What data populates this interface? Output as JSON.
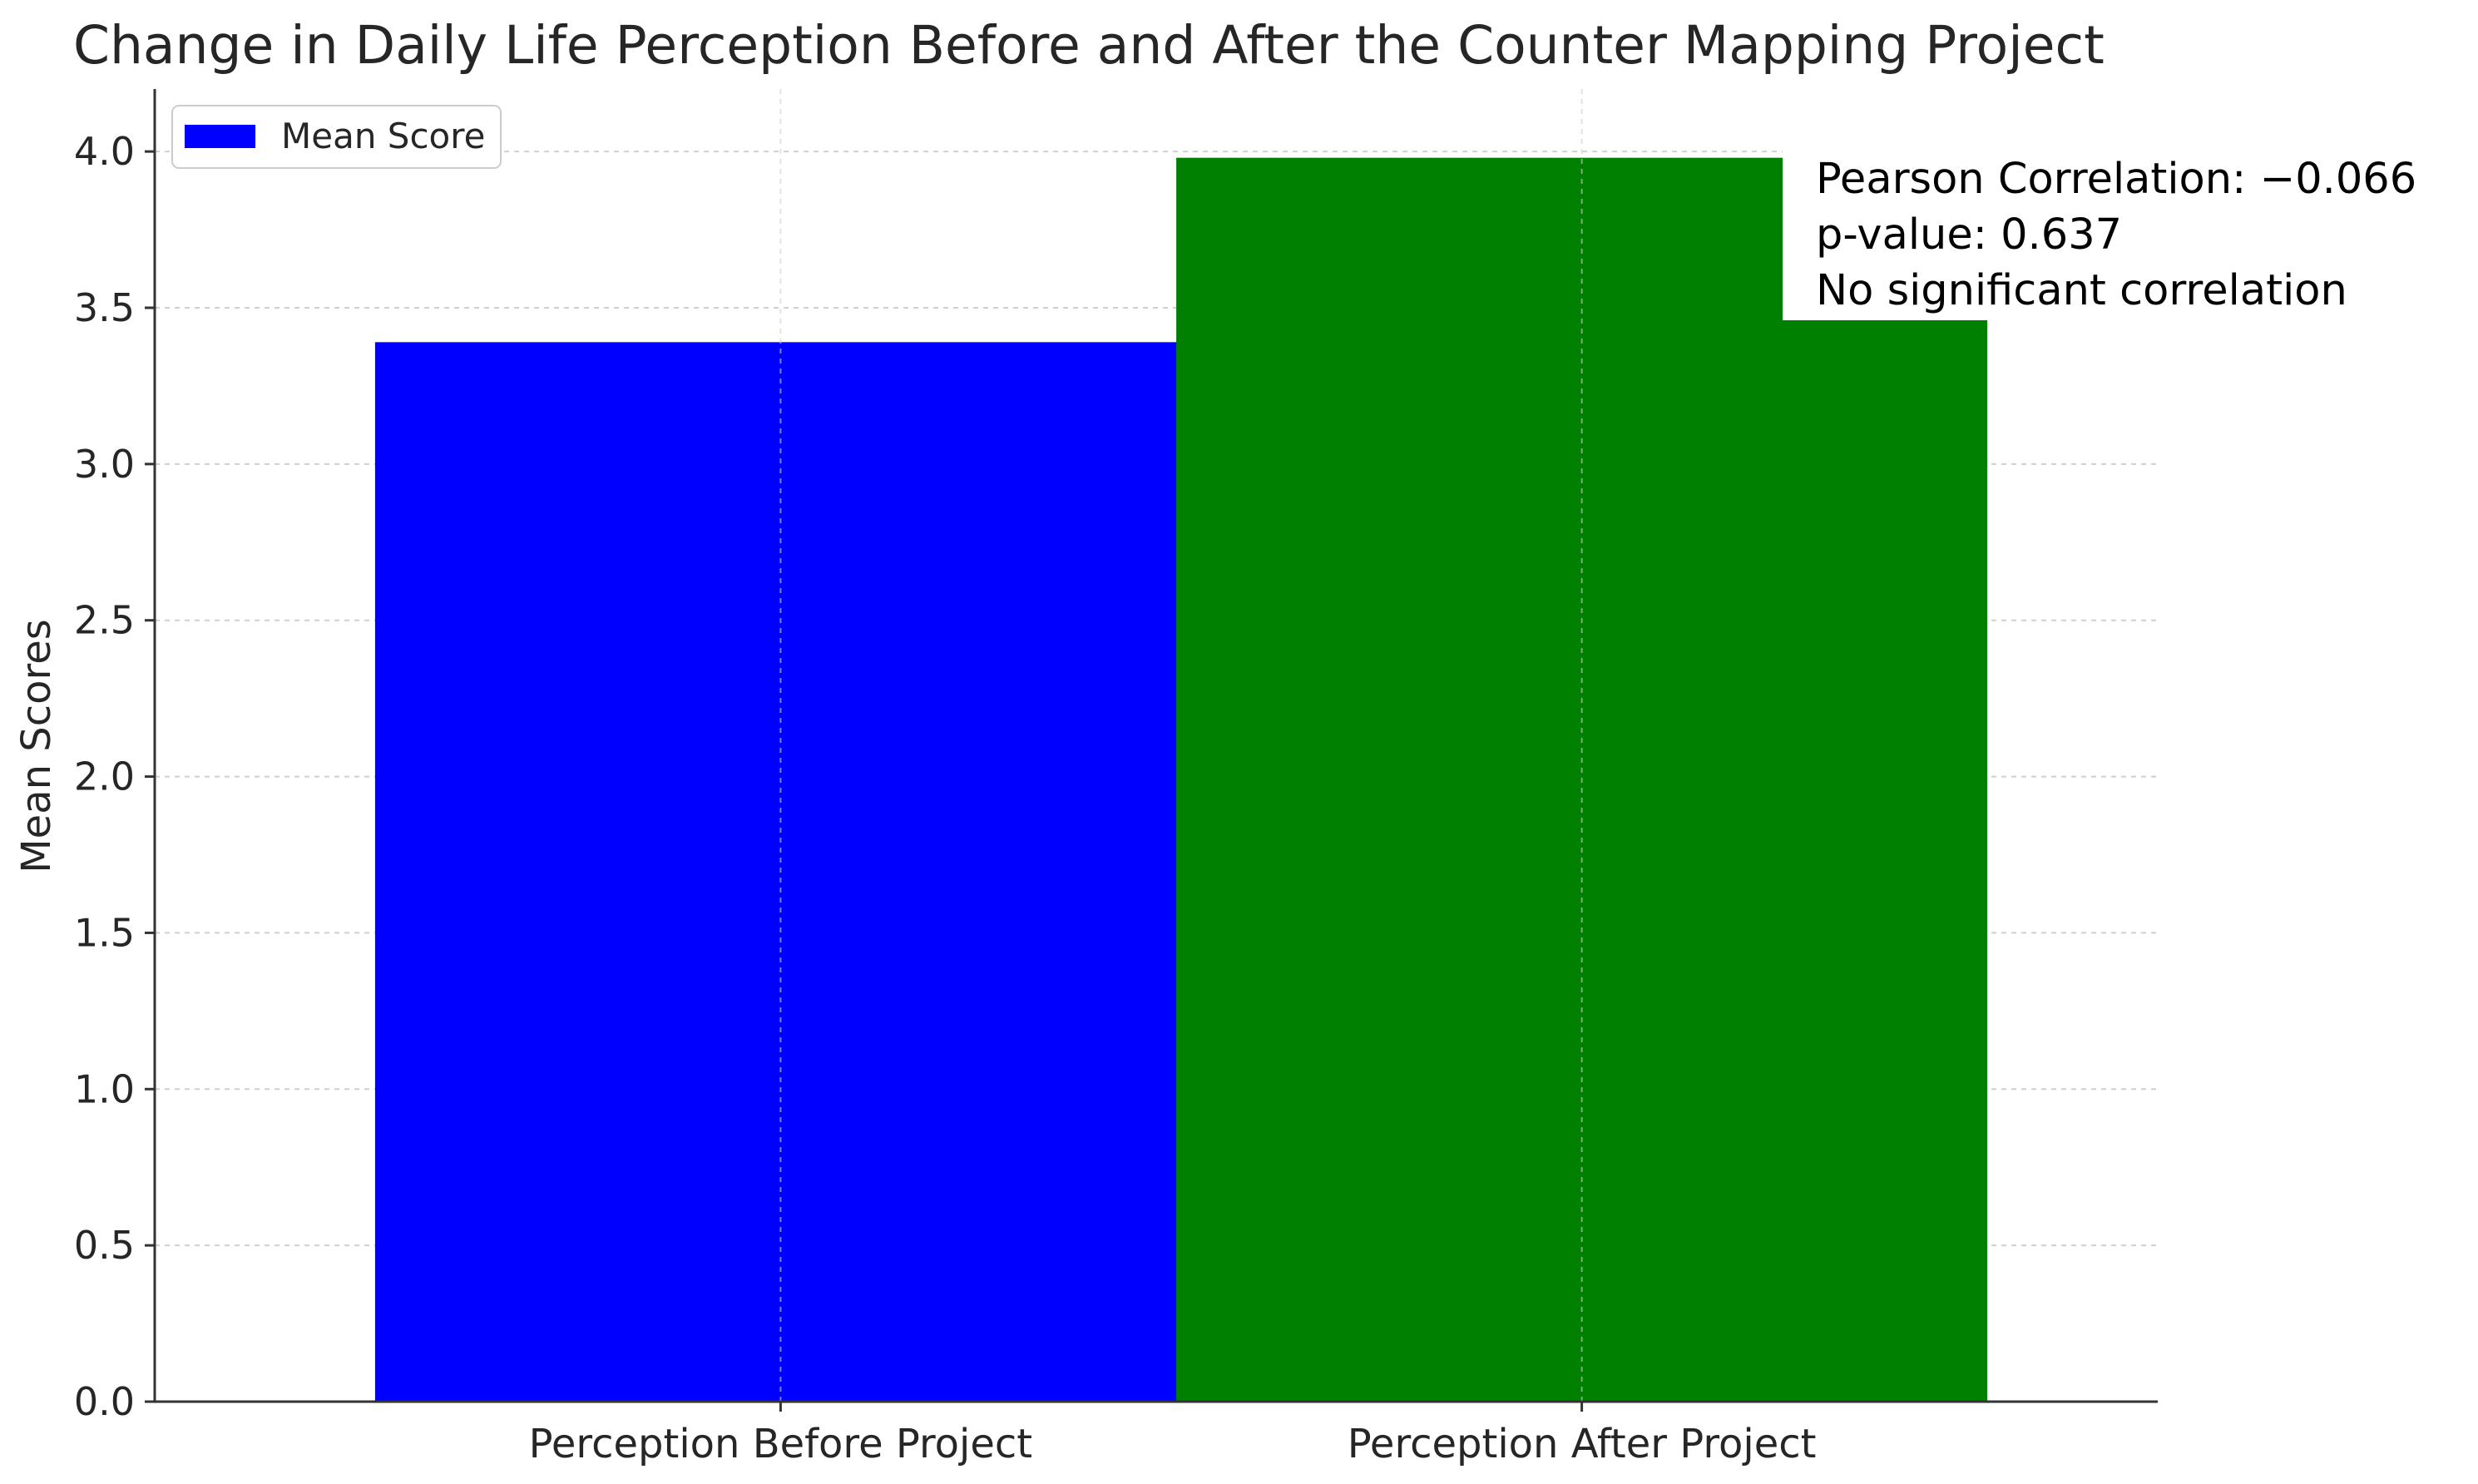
{
  "chart_data": {
    "type": "bar",
    "title": "Change in Daily Life Perception Before and After the Counter Mapping Project",
    "xlabel": "",
    "ylabel": "Mean Scores",
    "categories": [
      "Perception Before Project",
      "Perception After Project"
    ],
    "values": [
      3.39,
      3.98
    ],
    "bar_colors": [
      "#0000ff",
      "#008000"
    ],
    "ylim": [
      0,
      4.2
    ],
    "yticks": [
      "0.0",
      "0.5",
      "1.0",
      "1.5",
      "2.0",
      "2.5",
      "3.0",
      "3.5",
      "4.0"
    ],
    "grid": true,
    "legend": {
      "position": "top-left",
      "entries": [
        {
          "label": "Mean Score",
          "color": "#0000ff"
        }
      ]
    },
    "annotation": {
      "position": "top-right",
      "lines": [
        "Pearson Correlation: −0.066",
        "p-value: 0.637",
        "No significant correlation"
      ]
    }
  }
}
